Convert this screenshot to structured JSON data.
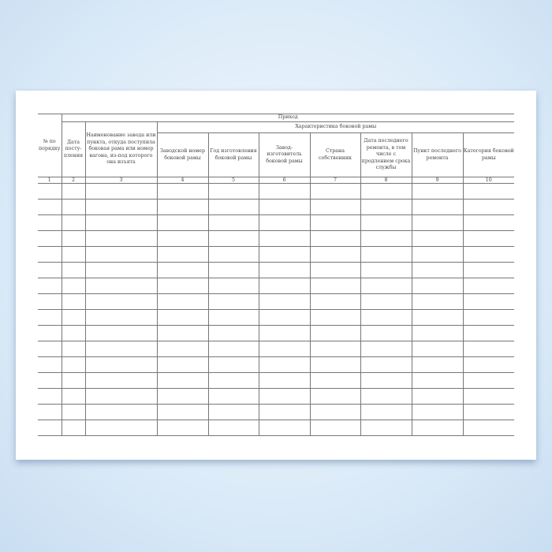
{
  "form": {
    "header": {
      "group_top": "Приход",
      "group_sub": "Характеристика боковой рамы",
      "columns": [
        "№ по порядку",
        "Дата посту-пления",
        "Наименование завода или пункта, откуда поступила боковая рама или номер вагона, из-под которого она изъята",
        "Заводской номер боковой рамы",
        "Год изготовления боковой рамы",
        "Завод-изготовитель боковой рамы",
        "Страна собственник",
        "Дата последнего ремонта, в том числе с продлением срока службы",
        "Пункт последнего ремонта",
        "Категория боковой рамы"
      ],
      "numbers": [
        "1",
        "2",
        "3",
        "4",
        "5",
        "6",
        "7",
        "8",
        "9",
        "10"
      ]
    },
    "empty_rows": 16,
    "colors": {
      "background": "#dcebf8",
      "paper": "#ffffff",
      "rule": "#777777"
    }
  }
}
